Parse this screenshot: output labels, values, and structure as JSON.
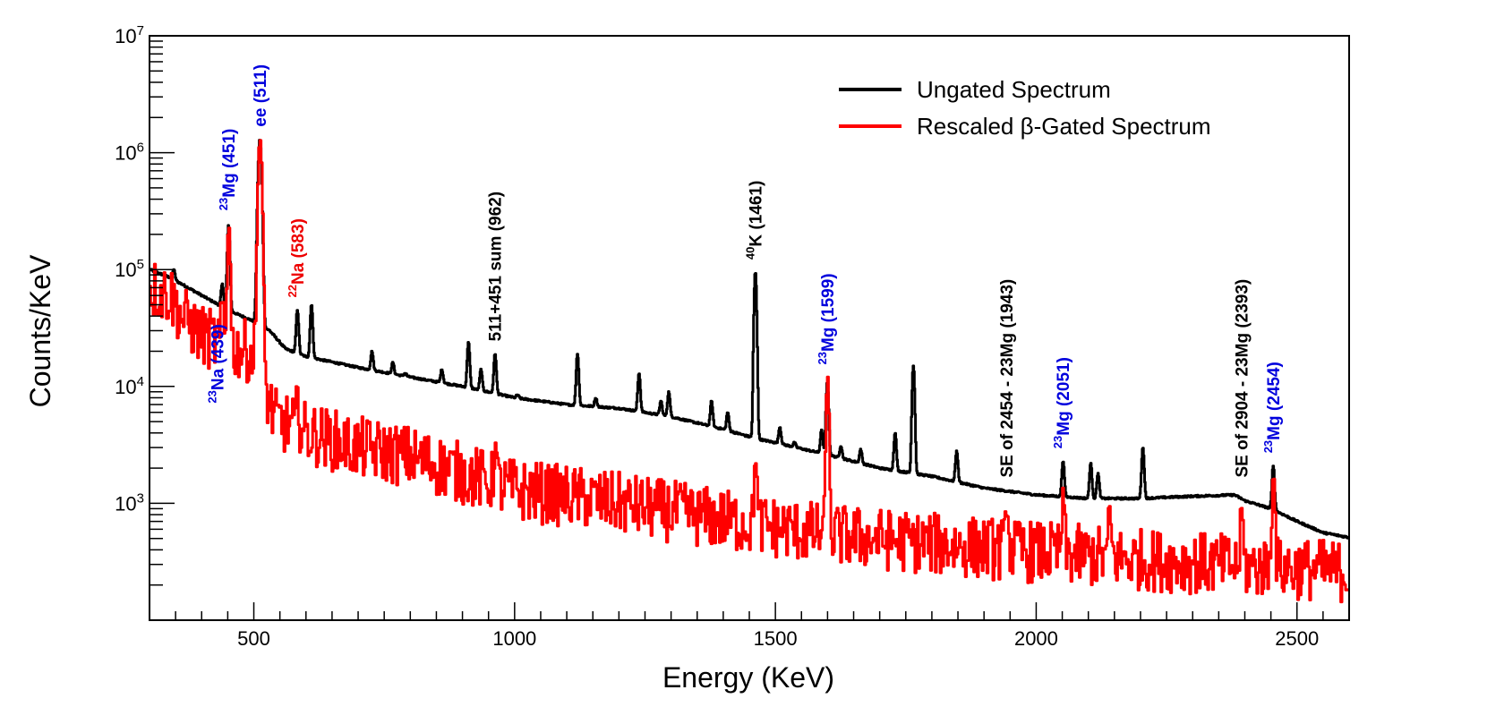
{
  "chart_data": {
    "type": "line",
    "xlabel": "Energy (KeV)",
    "ylabel": "Counts/KeV",
    "xlim": [
      300,
      2600
    ],
    "ylim": [
      100,
      10000000
    ],
    "yscale": "log",
    "x_ticks": [
      500,
      1000,
      1500,
      2000,
      2500
    ],
    "x_tick_labels": [
      "500",
      "1000",
      "1500",
      "2000",
      "2500"
    ],
    "y_ticks": [
      {
        "value": 1000,
        "base": "10",
        "exp": "3"
      },
      {
        "value": 10000,
        "base": "10",
        "exp": "4"
      },
      {
        "value": 100000,
        "base": "10",
        "exp": "5"
      },
      {
        "value": 1000000,
        "base": "10",
        "exp": "6"
      },
      {
        "value": 10000000,
        "base": "10",
        "exp": "7"
      }
    ],
    "legend_position": "top-right",
    "series": [
      {
        "name": "Ungated Spectrum",
        "color": "#000000",
        "continuum": [
          [
            300,
            100000
          ],
          [
            340,
            85000
          ],
          [
            400,
            60000
          ],
          [
            450,
            45000
          ],
          [
            500,
            36000
          ],
          [
            530,
            30000
          ],
          [
            560,
            21000
          ],
          [
            600,
            18000
          ],
          [
            700,
            14500
          ],
          [
            800,
            12000
          ],
          [
            900,
            10000
          ],
          [
            1000,
            8000
          ],
          [
            1100,
            7000
          ],
          [
            1200,
            6500
          ],
          [
            1300,
            5500
          ],
          [
            1400,
            4300
          ],
          [
            1460,
            3600
          ],
          [
            1500,
            3300
          ],
          [
            1600,
            2600
          ],
          [
            1700,
            2000
          ],
          [
            1800,
            1700
          ],
          [
            1900,
            1350
          ],
          [
            2000,
            1180
          ],
          [
            2100,
            1100
          ],
          [
            2200,
            1100
          ],
          [
            2300,
            1150
          ],
          [
            2380,
            1180
          ],
          [
            2400,
            1050
          ],
          [
            2450,
            900
          ],
          [
            2500,
            700
          ],
          [
            2550,
            560
          ],
          [
            2600,
            510
          ]
        ],
        "peaks": [
          [
            346,
            100000
          ],
          [
            439,
            75000
          ],
          [
            451,
            240000
          ],
          [
            511,
            1300000
          ],
          [
            583,
            45000
          ],
          [
            610,
            50000
          ],
          [
            726,
            20000
          ],
          [
            766,
            16000
          ],
          [
            790,
            13000
          ],
          [
            860,
            14000
          ],
          [
            911,
            24000
          ],
          [
            935,
            14000
          ],
          [
            962,
            19000
          ],
          [
            1005,
            8500
          ],
          [
            1120,
            19000
          ],
          [
            1155,
            8000
          ],
          [
            1238,
            13000
          ],
          [
            1280,
            7500
          ],
          [
            1295,
            9000
          ],
          [
            1377,
            7500
          ],
          [
            1408,
            6000
          ],
          [
            1461,
            95000
          ],
          [
            1508,
            4500
          ],
          [
            1536,
            3300
          ],
          [
            1588,
            4200
          ],
          [
            1599,
            11000
          ],
          [
            1625,
            3100
          ],
          [
            1663,
            2900
          ],
          [
            1729,
            4000
          ],
          [
            1764,
            15000
          ],
          [
            1847,
            2800
          ],
          [
            2051,
            2300
          ],
          [
            2104,
            2200
          ],
          [
            2118,
            1800
          ],
          [
            2204,
            3000
          ],
          [
            2454,
            2100
          ]
        ]
      },
      {
        "name": "Rescaled β-Gated Spectrum",
        "color": "#ff0000",
        "continuum": [
          [
            300,
            70000
          ],
          [
            340,
            60000
          ],
          [
            360,
            40000
          ],
          [
            400,
            27000
          ],
          [
            430,
            24000
          ],
          [
            500,
            19000
          ],
          [
            520,
            9500
          ],
          [
            540,
            5200
          ],
          [
            600,
            4000
          ],
          [
            700,
            3000
          ],
          [
            800,
            2500
          ],
          [
            900,
            1800
          ],
          [
            1000,
            1300
          ],
          [
            1100,
            1150
          ],
          [
            1200,
            1000
          ],
          [
            1300,
            850
          ],
          [
            1400,
            720
          ],
          [
            1500,
            620
          ],
          [
            1600,
            540
          ],
          [
            1800,
            450
          ],
          [
            2000,
            380
          ],
          [
            2200,
            330
          ],
          [
            2400,
            290
          ],
          [
            2600,
            260
          ]
        ],
        "peaks": [
          [
            439,
            50000
          ],
          [
            451,
            250000
          ],
          [
            511,
            1300000
          ],
          [
            583,
            8000
          ],
          [
            962,
            3100
          ],
          [
            1461,
            2500
          ],
          [
            1599,
            12000
          ],
          [
            1943,
            1000
          ],
          [
            2051,
            1100
          ],
          [
            2140,
            900
          ],
          [
            2393,
            900
          ],
          [
            2454,
            1900
          ]
        ],
        "noise": 0.27
      }
    ],
    "annotations": [
      {
        "x": 430,
        "y": 60000,
        "sup": "23",
        "text": "Na (439)",
        "color": "#0000dd",
        "place": "below"
      },
      {
        "x": 451,
        "y": 250000,
        "sup": "23",
        "text": "Mg (451)",
        "color": "#0000dd",
        "place": "above"
      },
      {
        "x": 511,
        "y": 1300000,
        "sup": "",
        "text": "ee (511)",
        "color": "#0000dd",
        "place": "above"
      },
      {
        "x": 583,
        "y": 45000,
        "sup": "22",
        "text": "Na (583)",
        "color": "#ee0000",
        "place": "above"
      },
      {
        "x": 962,
        "y": 19000,
        "sup": "",
        "text": "511+451 sum (962)",
        "color": "#000000",
        "place": "above"
      },
      {
        "x": 1461,
        "y": 95000,
        "sup": "40",
        "text": "K (1461)",
        "color": "#000000",
        "place": "above"
      },
      {
        "x": 1599,
        "y": 12000,
        "sup": "23",
        "text": "Mg (1599)",
        "color": "#0000dd",
        "place": "above"
      },
      {
        "x": 1943,
        "y": 1300,
        "sup": "",
        "text": "SE of 2454 - 23Mg (1943)",
        "color": "#000000",
        "place": "above"
      },
      {
        "x": 2051,
        "y": 2300,
        "sup": "23",
        "text": "Mg (2051)",
        "color": "#0000dd",
        "place": "above"
      },
      {
        "x": 2393,
        "y": 1300,
        "sup": "",
        "text": "SE of 2904 - 23Mg (2393)",
        "color": "#000000",
        "place": "above"
      },
      {
        "x": 2454,
        "y": 2100,
        "sup": "23",
        "text": "Mg (2454)",
        "color": "#0000dd",
        "place": "above"
      }
    ]
  }
}
